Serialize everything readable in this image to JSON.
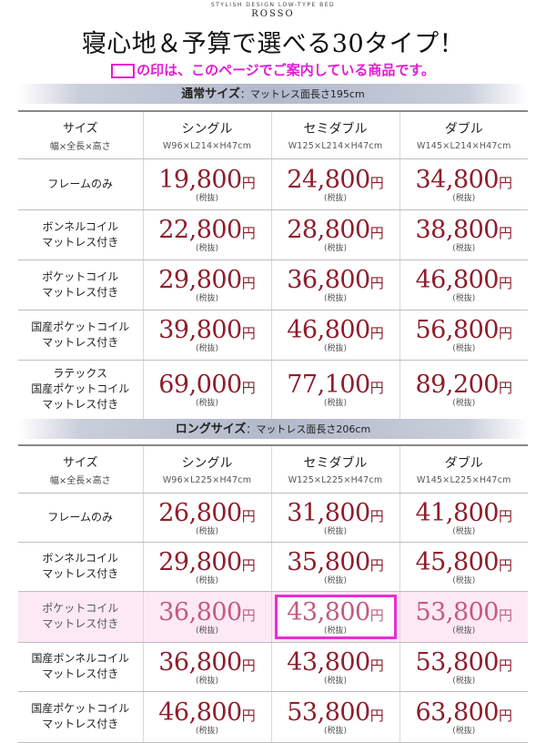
{
  "header": {
    "brand_tagline": "STYLISH DESIGN LOW-TYPE BED",
    "brand_name": "ROSSO",
    "title": "寝心地＆予算で選べる30タイプ！",
    "notice": "の印は、このページでご案内している商品です。"
  },
  "colors": {
    "accent": "#e31cd4",
    "price": "#8f1d2c",
    "highlight_bg": "#fde9f6"
  },
  "regular": {
    "band_bold": "通常サイズ",
    "band_rest": "：マットレス面長さ195cm",
    "header": {
      "size_label": "サイズ",
      "size_dims": "幅×全長×高さ",
      "cols": [
        {
          "name": "シングル",
          "spec": "W96×L214×H47cm"
        },
        {
          "name": "セミダブル",
          "spec": "W125×L214×H47cm"
        },
        {
          "name": "ダブル",
          "spec": "W145×L214×H47cm"
        }
      ]
    },
    "rows": [
      {
        "label": [
          "フレームのみ"
        ],
        "prices": [
          "19,800",
          "24,800",
          "34,800"
        ]
      },
      {
        "label": [
          "ボンネルコイル",
          "マットレス付き"
        ],
        "prices": [
          "22,800",
          "28,800",
          "38,800"
        ]
      },
      {
        "label": [
          "ポケットコイル",
          "マットレス付き"
        ],
        "prices": [
          "29,800",
          "36,800",
          "46,800"
        ]
      },
      {
        "label": [
          "国産ポケットコイル",
          "マットレス付き"
        ],
        "prices": [
          "39,800",
          "46,800",
          "56,800"
        ]
      },
      {
        "label": [
          "ラテックス",
          "国産ポケットコイル",
          "マットレス付き"
        ],
        "prices": [
          "69,000",
          "77,100",
          "89,200"
        ]
      }
    ]
  },
  "long": {
    "band_bold": "ロングサイズ",
    "band_rest": "：マットレス面長さ206cm",
    "header": {
      "size_label": "サイズ",
      "size_dims": "幅×全長×高さ",
      "cols": [
        {
          "name": "シングル",
          "spec": "W96×L225×H47cm"
        },
        {
          "name": "セミダブル",
          "spec": "W125×L225×H47cm"
        },
        {
          "name": "ダブル",
          "spec": "W145×L225×H47cm"
        }
      ]
    },
    "rows": [
      {
        "label": [
          "フレームのみ"
        ],
        "prices": [
          "26,800",
          "31,800",
          "41,800"
        ]
      },
      {
        "label": [
          "ボンネルコイル",
          "マットレス付き"
        ],
        "prices": [
          "29,800",
          "35,800",
          "45,800"
        ]
      },
      {
        "label": [
          "ポケットコイル",
          "マットレス付き"
        ],
        "prices": [
          "36,800",
          "43,800",
          "53,800"
        ]
      },
      {
        "label": [
          "国産ボンネルコイル",
          "マットレス付き"
        ],
        "prices": [
          "36,800",
          "43,800",
          "53,800"
        ]
      },
      {
        "label": [
          "国産ポケットコイル",
          "マットレス付き"
        ],
        "prices": [
          "46,800",
          "53,800",
          "63,800"
        ]
      }
    ]
  },
  "currency": "円",
  "tax_note": "(税抜)"
}
